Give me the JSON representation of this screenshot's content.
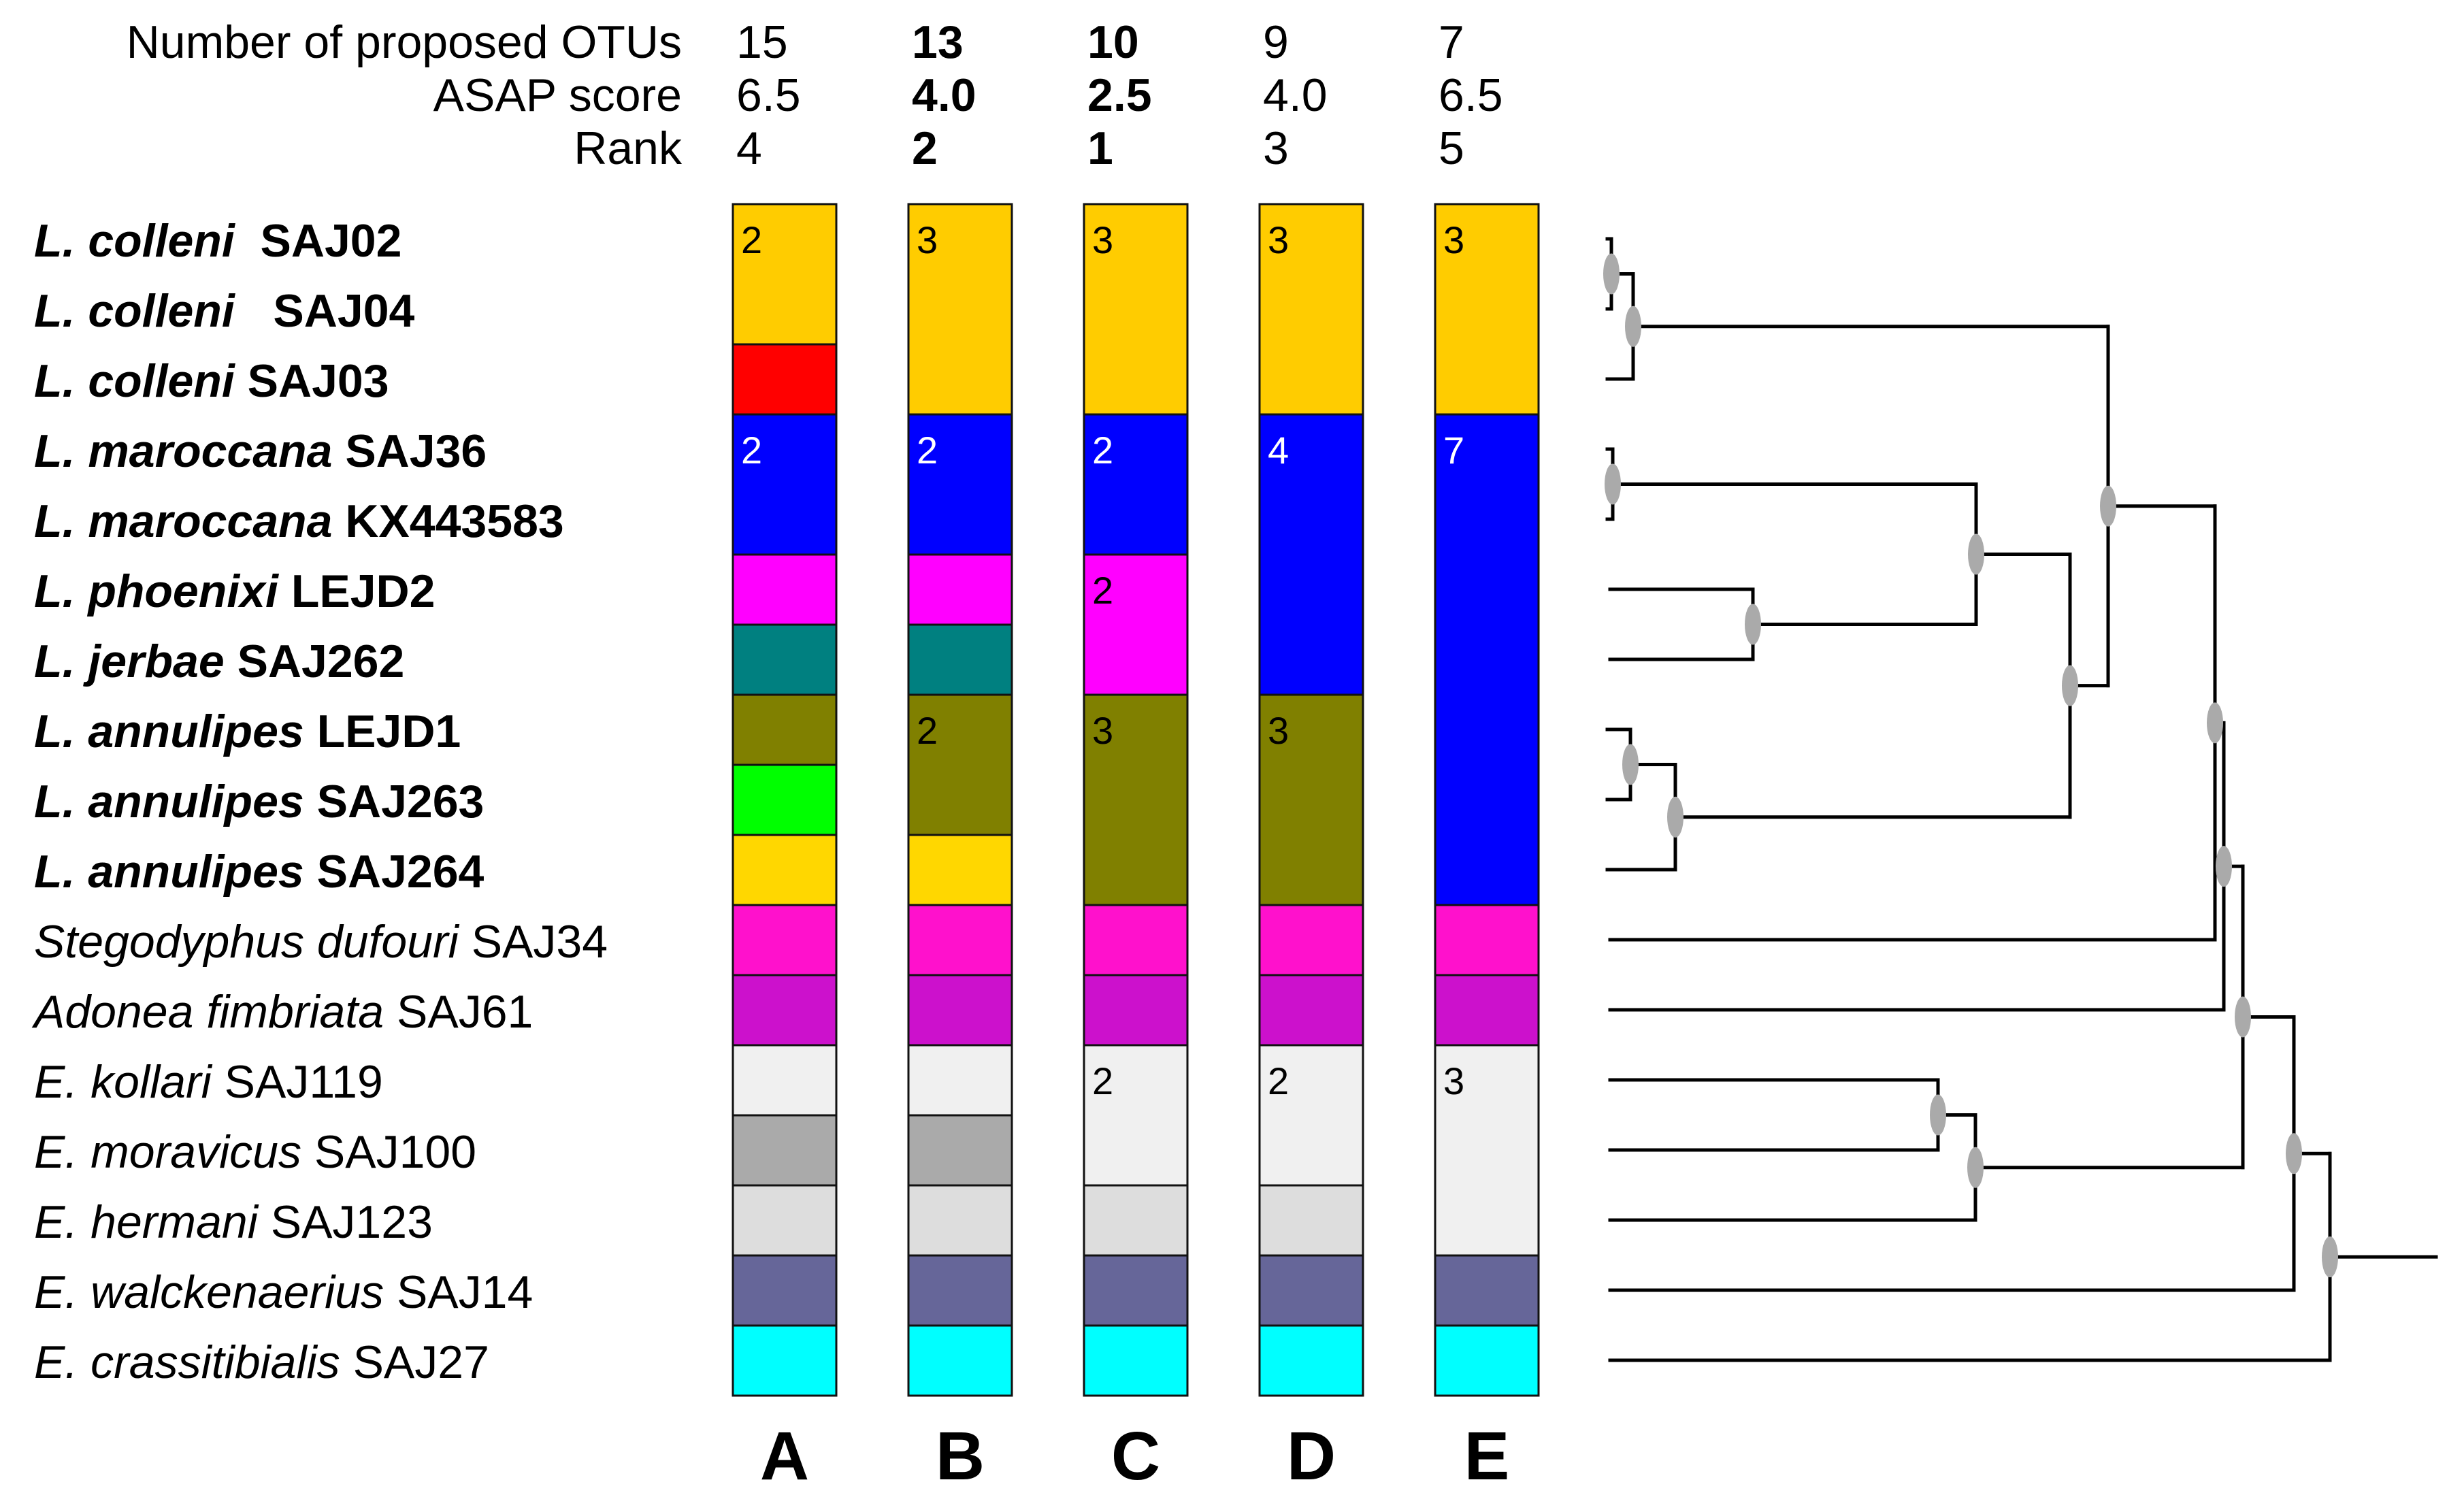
{
  "header": {
    "rows": [
      {
        "label": "Number of proposed OTUs",
        "values": [
          "15",
          "13",
          "10",
          "9",
          "7"
        ]
      },
      {
        "label": "ASAP score",
        "values": [
          "6.5",
          "4.0",
          "2.5",
          "4.0",
          "6.5"
        ]
      },
      {
        "label": "Rank",
        "values": [
          "4",
          "2",
          "1",
          "3",
          "5"
        ]
      }
    ],
    "bold_columns": [
      1,
      2
    ]
  },
  "species": [
    {
      "genus": "L. colleni",
      "code": "SAJ02",
      "bold": true
    },
    {
      "genus": "L. colleni",
      "code": "SAJ04",
      "bold": true
    },
    {
      "genus": "L. colleni",
      "code": "SAJ03",
      "bold": true
    },
    {
      "genus": "L. maroccana",
      "code": "SAJ36",
      "bold": true
    },
    {
      "genus": "L. maroccana",
      "code": "KX443583",
      "bold": true
    },
    {
      "genus": "L. phoenixi",
      "code": "LEJD2",
      "bold": true
    },
    {
      "genus": "L. jerbae",
      "code": "SAJ262",
      "bold": true
    },
    {
      "genus": "L. annulipes",
      "code": "LEJD1",
      "bold": true
    },
    {
      "genus": "L. annulipes",
      "code": "SAJ263",
      "bold": true
    },
    {
      "genus": "L. annulipes",
      "code": "SAJ264",
      "bold": true
    },
    {
      "genus": "Stegodyphus dufouri",
      "code": "SAJ34",
      "bold": false
    },
    {
      "genus": "Adonea fimbriata",
      "code": "SAJ61",
      "bold": false
    },
    {
      "genus": "E. kollari",
      "code": "SAJ119",
      "bold": false
    },
    {
      "genus": "E. moravicus",
      "code": "SAJ100",
      "bold": false
    },
    {
      "genus": "E. hermani",
      "code": "SAJ123",
      "bold": false
    },
    {
      "genus": "E. walckenaerius",
      "code": "SAJ14",
      "bold": false
    },
    {
      "genus": "E. crassitibialis",
      "code": "SAJ27",
      "bold": false
    }
  ],
  "columns": [
    {
      "letter": "A",
      "groups": [
        {
          "start": 0,
          "count": 2,
          "color": "#FFCC00",
          "label": "2",
          "label_color": "#000000"
        },
        {
          "start": 2,
          "count": 1,
          "color": "#FF0000",
          "label": "",
          "label_color": "#000000"
        },
        {
          "start": 3,
          "count": 2,
          "color": "#0000FF",
          "label": "2",
          "label_color": "#FFFFFF"
        },
        {
          "start": 5,
          "count": 1,
          "color": "#FF00FF",
          "label": "",
          "label_color": "#000000"
        },
        {
          "start": 6,
          "count": 1,
          "color": "#008080",
          "label": "",
          "label_color": "#000000"
        },
        {
          "start": 7,
          "count": 1,
          "color": "#808000",
          "label": "",
          "label_color": "#000000"
        },
        {
          "start": 8,
          "count": 1,
          "color": "#00FF00",
          "label": "",
          "label_color": "#000000"
        },
        {
          "start": 9,
          "count": 1,
          "color": "#FFD700",
          "label": "",
          "label_color": "#000000"
        },
        {
          "start": 10,
          "count": 1,
          "color": "#FF11CC",
          "label": "",
          "label_color": "#000000"
        },
        {
          "start": 11,
          "count": 1,
          "color": "#CC11CC",
          "label": "",
          "label_color": "#000000"
        },
        {
          "start": 12,
          "count": 1,
          "color": "#F0F0F0",
          "label": "",
          "label_color": "#000000"
        },
        {
          "start": 13,
          "count": 1,
          "color": "#AAAAAA",
          "label": "",
          "label_color": "#000000"
        },
        {
          "start": 14,
          "count": 1,
          "color": "#DDDDDD",
          "label": "",
          "label_color": "#000000"
        },
        {
          "start": 15,
          "count": 1,
          "color": "#666699",
          "label": "",
          "label_color": "#000000"
        },
        {
          "start": 16,
          "count": 1,
          "color": "#00FFFF",
          "label": "",
          "label_color": "#000000"
        }
      ]
    },
    {
      "letter": "B",
      "groups": [
        {
          "start": 0,
          "count": 3,
          "color": "#FFCC00",
          "label": "3",
          "label_color": "#000000"
        },
        {
          "start": 3,
          "count": 2,
          "color": "#0000FF",
          "label": "2",
          "label_color": "#FFFFFF"
        },
        {
          "start": 5,
          "count": 1,
          "color": "#FF00FF",
          "label": "",
          "label_color": "#000000"
        },
        {
          "start": 6,
          "count": 1,
          "color": "#008080",
          "label": "",
          "label_color": "#000000"
        },
        {
          "start": 7,
          "count": 2,
          "color": "#808000",
          "label": "2",
          "label_color": "#000000"
        },
        {
          "start": 9,
          "count": 1,
          "color": "#FFD700",
          "label": "",
          "label_color": "#000000"
        },
        {
          "start": 10,
          "count": 1,
          "color": "#FF11CC",
          "label": "",
          "label_color": "#000000"
        },
        {
          "start": 11,
          "count": 1,
          "color": "#CC11CC",
          "label": "",
          "label_color": "#000000"
        },
        {
          "start": 12,
          "count": 1,
          "color": "#F0F0F0",
          "label": "",
          "label_color": "#000000"
        },
        {
          "start": 13,
          "count": 1,
          "color": "#AAAAAA",
          "label": "",
          "label_color": "#000000"
        },
        {
          "start": 14,
          "count": 1,
          "color": "#DDDDDD",
          "label": "",
          "label_color": "#000000"
        },
        {
          "start": 15,
          "count": 1,
          "color": "#666699",
          "label": "",
          "label_color": "#000000"
        },
        {
          "start": 16,
          "count": 1,
          "color": "#00FFFF",
          "label": "",
          "label_color": "#000000"
        }
      ]
    },
    {
      "letter": "C",
      "groups": [
        {
          "start": 0,
          "count": 3,
          "color": "#FFCC00",
          "label": "3",
          "label_color": "#000000"
        },
        {
          "start": 3,
          "count": 2,
          "color": "#0000FF",
          "label": "2",
          "label_color": "#FFFFFF"
        },
        {
          "start": 5,
          "count": 2,
          "color": "#FF00FF",
          "label": "2",
          "label_color": "#000000"
        },
        {
          "start": 7,
          "count": 3,
          "color": "#808000",
          "label": "3",
          "label_color": "#000000"
        },
        {
          "start": 10,
          "count": 1,
          "color": "#FF11CC",
          "label": "",
          "label_color": "#000000"
        },
        {
          "start": 11,
          "count": 1,
          "color": "#CC11CC",
          "label": "",
          "label_color": "#000000"
        },
        {
          "start": 12,
          "count": 2,
          "color": "#F0F0F0",
          "label": "2",
          "label_color": "#000000"
        },
        {
          "start": 14,
          "count": 1,
          "color": "#DDDDDD",
          "label": "",
          "label_color": "#000000"
        },
        {
          "start": 15,
          "count": 1,
          "color": "#666699",
          "label": "",
          "label_color": "#000000"
        },
        {
          "start": 16,
          "count": 1,
          "color": "#00FFFF",
          "label": "",
          "label_color": "#000000"
        }
      ]
    },
    {
      "letter": "D",
      "groups": [
        {
          "start": 0,
          "count": 3,
          "color": "#FFCC00",
          "label": "3",
          "label_color": "#000000"
        },
        {
          "start": 3,
          "count": 4,
          "color": "#0000FF",
          "label": "4",
          "label_color": "#FFFFFF"
        },
        {
          "start": 7,
          "count": 3,
          "color": "#808000",
          "label": "3",
          "label_color": "#000000"
        },
        {
          "start": 10,
          "count": 1,
          "color": "#FF11CC",
          "label": "",
          "label_color": "#000000"
        },
        {
          "start": 11,
          "count": 1,
          "color": "#CC11CC",
          "label": "",
          "label_color": "#000000"
        },
        {
          "start": 12,
          "count": 2,
          "color": "#F0F0F0",
          "label": "2",
          "label_color": "#000000"
        },
        {
          "start": 14,
          "count": 1,
          "color": "#DDDDDD",
          "label": "",
          "label_color": "#000000"
        },
        {
          "start": 15,
          "count": 1,
          "color": "#666699",
          "label": "",
          "label_color": "#000000"
        },
        {
          "start": 16,
          "count": 1,
          "color": "#00FFFF",
          "label": "",
          "label_color": "#000000"
        }
      ]
    },
    {
      "letter": "E",
      "groups": [
        {
          "start": 0,
          "count": 3,
          "color": "#FFCC00",
          "label": "3",
          "label_color": "#000000"
        },
        {
          "start": 3,
          "count": 7,
          "color": "#0000FF",
          "label": "7",
          "label_color": "#FFFFFF"
        },
        {
          "start": 10,
          "count": 1,
          "color": "#FF11CC",
          "label": "",
          "label_color": "#000000"
        },
        {
          "start": 11,
          "count": 1,
          "color": "#CC11CC",
          "label": "",
          "label_color": "#000000"
        },
        {
          "start": 12,
          "count": 3,
          "color": "#F0F0F0",
          "label": "3",
          "label_color": "#000000"
        },
        {
          "start": 15,
          "count": 1,
          "color": "#666699",
          "label": "",
          "label_color": "#000000"
        },
        {
          "start": 16,
          "count": 1,
          "color": "#00FFFF",
          "label": "",
          "label_color": "#000000"
        }
      ]
    }
  ],
  "tree": {
    "node_color": "#AAAAAA",
    "branch_color": "#000000"
  }
}
